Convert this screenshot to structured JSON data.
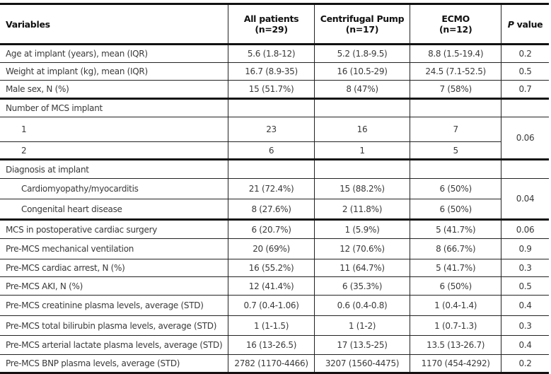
{
  "table": {
    "headers": [
      {
        "line1": "Variables",
        "line2": ""
      },
      {
        "line1": "All patients",
        "line2": "(n=29)"
      },
      {
        "line1": "Centrifugal Pump",
        "line2": "(n=17)"
      },
      {
        "line1": "ECMO",
        "line2": "(n=12)"
      },
      {
        "line1": "P",
        "line2": " value"
      }
    ],
    "rows": [
      {
        "label": "Age at implant (years), mean (IQR)",
        "cells": [
          "5.6 (1.8-12)",
          "5.2 (1.8-9.5)",
          "8.8 (1.5-19.4)"
        ],
        "p": "0.2"
      },
      {
        "label": "Weight at implant (kg), mean (IQR)",
        "cells": [
          "16.7 (8.9-35)",
          "16 (10.5-29)",
          "24.5 (7.1-52.5)"
        ],
        "p": "0.5"
      },
      {
        "label": "Male sex, N (%)",
        "cells": [
          "15 (51.7%)",
          "8 (47%)",
          "7 (58%)"
        ],
        "p": "0.7",
        "group_end": true
      },
      {
        "label": "Number of MCS implant",
        "cells": [
          "",
          "",
          ""
        ],
        "p": ""
      },
      {
        "label": "1",
        "indent": true,
        "cells": [
          "23",
          "16",
          "7"
        ],
        "p": "0.06",
        "p_rowspan": 2
      },
      {
        "label": "2",
        "indent": true,
        "cells": [
          "6",
          "1",
          "5"
        ],
        "group_end": true
      },
      {
        "label": "Diagnosis at implant",
        "cells": [
          "",
          "",
          ""
        ],
        "p": ""
      },
      {
        "label": "Cardiomyopathy/myocarditis",
        "indent": true,
        "cells": [
          "21 (72.4%)",
          "15 (88.2%)",
          "6 (50%)"
        ],
        "p": "0.04",
        "p_rowspan": 2
      },
      {
        "label": "Congenital heart disease",
        "indent": true,
        "cells": [
          "8 (27.6%)",
          "2 (11.8%)",
          "6 (50%)"
        ],
        "group_end": true
      },
      {
        "label": "MCS in postoperative cardiac surgery",
        "cells": [
          "6 (20.7%)",
          "1 (5.9%)",
          "5 (41.7%)"
        ],
        "p": "0.06"
      },
      {
        "label": "Pre-MCS mechanical ventilation",
        "cells": [
          "20 (69%)",
          "12 (70.6%)",
          "8 (66.7%)"
        ],
        "p": "0.9"
      },
      {
        "label": "Pre-MCS cardiac arrest, N (%)",
        "cells": [
          "16 (55.2%)",
          "11 (64.7%)",
          "5 (41.7%)"
        ],
        "p": "0.3"
      },
      {
        "label": "Pre-MCS AKI, N (%)",
        "cells": [
          "12 (41.4%)",
          "6 (35.3%)",
          "6 (50%)"
        ],
        "p": "0.5"
      },
      {
        "label": "Pre-MCS creatinine plasma levels, average (STD)",
        "cells": [
          "0.7 (0.4-1.06)",
          "0.6 (0.4-0.8)",
          "1 (0.4-1.4)"
        ],
        "p": "0.4"
      },
      {
        "label": "Pre-MCS total bilirubin plasma levels, average (STD)",
        "cells": [
          "1 (1-1.5)",
          "1 (1-2)",
          "1 (0.7-1.3)"
        ],
        "p": "0.3"
      },
      {
        "label": "Pre-MCS arterial lactate plasma levels, average (STD)",
        "cells": [
          "16 (13-26.5)",
          "17 (13.5-25)",
          "13.5 (13-26.7)"
        ],
        "p": "0.4"
      },
      {
        "label": "Pre-MCS BNP plasma levels, average (STD)",
        "cells": [
          "2782 (1170-4466)",
          "3207 (1560-4475)",
          "1170 (454-4292)"
        ],
        "p": "0.2"
      }
    ]
  }
}
